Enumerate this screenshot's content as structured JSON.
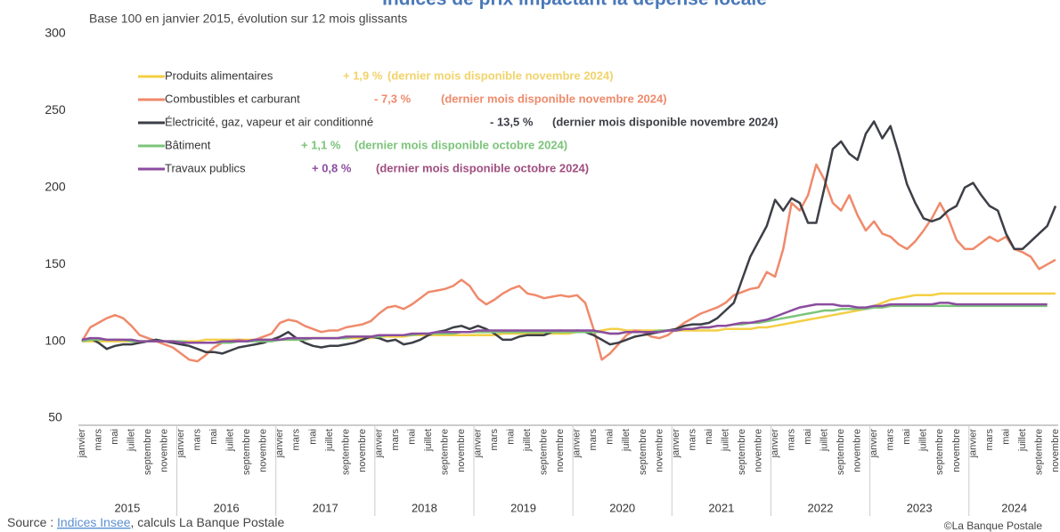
{
  "chart_data": {
    "type": "line",
    "title": "Indices de prix impactant la dépense locale",
    "subtitle": "Base 100 en janvier 2015, évolution sur 12 mois glissants",
    "categories": [
      "janvier",
      null,
      "mars",
      null,
      "mai",
      null,
      "juillet",
      null,
      "septembre",
      null,
      "novembre",
      null,
      "janvier",
      null,
      "mars",
      null,
      "mai",
      null,
      "juillet",
      null,
      "septembre",
      null,
      "novembre",
      null,
      "janvier",
      null,
      "mars",
      null,
      "mai",
      null,
      "juillet",
      null,
      "septembre",
      null,
      "novembre",
      null,
      "janvier",
      null,
      "mars",
      null,
      "mai",
      null,
      "juillet",
      null,
      "septembre",
      null,
      "novembre",
      null,
      "janvier",
      null,
      "mars",
      null,
      "mai",
      null,
      "juillet",
      null,
      "septembre",
      null,
      "novembre",
      null,
      "janvier",
      null,
      "mars",
      null,
      "mai",
      null,
      "juillet",
      null,
      "septembre",
      null,
      "novembre",
      null,
      "janvier",
      null,
      "mars",
      null,
      "mai",
      null,
      "juillet",
      null,
      "septembre",
      null,
      "novembre",
      null,
      "janvier",
      null,
      "mars",
      null,
      "mai",
      null,
      "juillet",
      null,
      "septembre",
      null,
      "novembre",
      null,
      "janvier",
      null,
      "mars",
      null,
      "mai",
      null,
      "juillet",
      null,
      "septembre",
      null,
      "novembre",
      null,
      "janvier",
      null,
      "mars",
      null,
      "mai",
      null,
      "juillet",
      null,
      "septembre",
      null,
      "novembre"
    ],
    "year_labels": [
      "2015",
      "2016",
      "2017",
      "2018",
      "2019",
      "2020",
      "2021",
      "2022",
      "2023",
      "2024"
    ],
    "ylim": [
      50,
      300
    ],
    "yticks": [
      50,
      100,
      150,
      200,
      250,
      300
    ],
    "series": [
      {
        "name": "Produits alimentaires",
        "color": "#f3cf45",
        "change": "+ 1,9 %",
        "note": "(dernier mois disponible novembre 2024)",
        "values": [
          100,
          100,
          100,
          100,
          100,
          100,
          100,
          100,
          100,
          100,
          100,
          100,
          100,
          100,
          100,
          101,
          101,
          101,
          101,
          101,
          101,
          101,
          101,
          101,
          101,
          101,
          101,
          102,
          102,
          102,
          102,
          102,
          102,
          102,
          102,
          102,
          103,
          103,
          103,
          103,
          104,
          104,
          104,
          104,
          104,
          104,
          104,
          104,
          104,
          104,
          104,
          105,
          105,
          105,
          105,
          105,
          105,
          105,
          105,
          105,
          106,
          106,
          106,
          107,
          108,
          108,
          107,
          107,
          107,
          107,
          107,
          107,
          107,
          107,
          107,
          107,
          107,
          107,
          108,
          108,
          108,
          108,
          109,
          109,
          110,
          111,
          112,
          113,
          114,
          115,
          116,
          117,
          118,
          119,
          120,
          121,
          123,
          125,
          127,
          128,
          129,
          130,
          130,
          130,
          131,
          131,
          131,
          131,
          131,
          131,
          131,
          131,
          131,
          131,
          131,
          131,
          131,
          131,
          131
        ]
      },
      {
        "name": "Combustibles et carburant",
        "color": "#ef8a6b",
        "change": "- 7,3 %",
        "note": "(dernier mois disponible novembre 2024)",
        "values": [
          100,
          109,
          112,
          115,
          117,
          115,
          110,
          104,
          102,
          100,
          98,
          96,
          92,
          88,
          87,
          91,
          96,
          99,
          100,
          101,
          100,
          101,
          103,
          105,
          112,
          114,
          113,
          110,
          108,
          106,
          107,
          107,
          109,
          110,
          111,
          113,
          118,
          122,
          123,
          121,
          124,
          128,
          132,
          133,
          134,
          136,
          140,
          136,
          128,
          124,
          127,
          131,
          134,
          136,
          131,
          130,
          128,
          129,
          130,
          129,
          130,
          125,
          108,
          88,
          92,
          98,
          104,
          107,
          106,
          103,
          102,
          104,
          108,
          112,
          115,
          118,
          120,
          122,
          125,
          130,
          132,
          134,
          135,
          145,
          142,
          160,
          190,
          185,
          195,
          215,
          205,
          190,
          185,
          195,
          182,
          172,
          178,
          170,
          168,
          163,
          160,
          165,
          172,
          180,
          190,
          180,
          166,
          160,
          160,
          164,
          168,
          165,
          168,
          160,
          158,
          155,
          147,
          150,
          153
        ]
      },
      {
        "name": "Électricité, gaz, vapeur et air conditionné",
        "color": "#3d3f47",
        "change": "- 13,5 %",
        "note": "(dernier mois disponible novembre 2024)",
        "values": [
          100,
          102,
          99,
          95,
          97,
          98,
          98,
          99,
          100,
          101,
          100,
          99,
          98,
          97,
          95,
          93,
          93,
          92,
          94,
          96,
          97,
          98,
          99,
          101,
          103,
          106,
          102,
          99,
          97,
          96,
          97,
          97,
          98,
          99,
          101,
          103,
          102,
          100,
          101,
          98,
          99,
          101,
          104,
          106,
          107,
          109,
          110,
          108,
          110,
          108,
          105,
          101,
          101,
          103,
          104,
          104,
          104,
          106,
          107,
          106,
          107,
          106,
          104,
          101,
          98,
          99,
          101,
          103,
          104,
          105,
          106,
          107,
          108,
          110,
          111,
          111,
          112,
          115,
          120,
          125,
          140,
          155,
          165,
          175,
          192,
          185,
          193,
          190,
          177,
          177,
          200,
          225,
          230,
          222,
          218,
          235,
          243,
          232,
          240,
          222,
          202,
          190,
          180,
          178,
          180,
          185,
          188,
          200,
          203,
          195,
          188,
          185,
          170,
          160,
          160,
          165,
          170,
          175,
          188
        ]
      },
      {
        "name": "Bâtiment",
        "color": "#7cc47a",
        "change": "+ 1,1 %",
        "note": "(dernier mois disponible octobre 2024)",
        "values": [
          100,
          101,
          101,
          101,
          101,
          101,
          100,
          100,
          100,
          100,
          100,
          100,
          100,
          99,
          99,
          99,
          99,
          99,
          99,
          100,
          100,
          100,
          100,
          100,
          101,
          101,
          101,
          101,
          102,
          102,
          102,
          102,
          102,
          103,
          103,
          103,
          103,
          104,
          104,
          104,
          104,
          105,
          105,
          105,
          105,
          105,
          106,
          106,
          106,
          106,
          106,
          106,
          106,
          106,
          106,
          106,
          106,
          106,
          106,
          106,
          106,
          106,
          106,
          106,
          105,
          105,
          106,
          106,
          106,
          106,
          107,
          107,
          107,
          108,
          108,
          109,
          109,
          110,
          110,
          111,
          111,
          112,
          112,
          113,
          114,
          115,
          116,
          117,
          118,
          119,
          120,
          120,
          121,
          121,
          121,
          121,
          122,
          122,
          123,
          123,
          123,
          123,
          123,
          123,
          123,
          123,
          123,
          123,
          123,
          123,
          123,
          123,
          123,
          123,
          123,
          123,
          123,
          123,
          null
        ]
      },
      {
        "name": "Travaux publics",
        "color": "#8b4c9f",
        "change": "+ 0,8 %",
        "note": "(dernier mois disponible octobre 2024)",
        "values": [
          101,
          102,
          102,
          101,
          101,
          101,
          101,
          100,
          100,
          100,
          100,
          100,
          99,
          99,
          99,
          99,
          99,
          100,
          100,
          100,
          100,
          101,
          101,
          101,
          101,
          102,
          102,
          102,
          102,
          102,
          102,
          102,
          103,
          103,
          103,
          103,
          104,
          104,
          104,
          104,
          105,
          105,
          105,
          106,
          106,
          106,
          106,
          106,
          107,
          107,
          107,
          107,
          107,
          107,
          107,
          107,
          107,
          107,
          107,
          107,
          107,
          107,
          107,
          106,
          105,
          105,
          106,
          106,
          106,
          106,
          106,
          107,
          107,
          108,
          108,
          109,
          109,
          110,
          110,
          111,
          112,
          112,
          113,
          114,
          116,
          118,
          120,
          122,
          123,
          124,
          124,
          124,
          123,
          123,
          122,
          122,
          123,
          123,
          124,
          124,
          124,
          124,
          124,
          124,
          125,
          125,
          124,
          124,
          124,
          124,
          124,
          124,
          124,
          124,
          124,
          124,
          124,
          124,
          null
        ]
      }
    ],
    "source_label": "Source : ",
    "source_link": "Indices Insee",
    "source_rest": ", calculs La Banque Postale",
    "credit": "©La Banque Postale"
  }
}
